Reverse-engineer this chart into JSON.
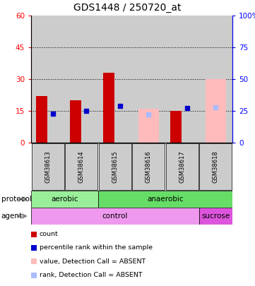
{
  "title": "GDS1448 / 250720_at",
  "samples": [
    "GSM38613",
    "GSM38614",
    "GSM38615",
    "GSM38616",
    "GSM38617",
    "GSM38618"
  ],
  "count_values": [
    22,
    20,
    33,
    null,
    15,
    null
  ],
  "rank_values": [
    23,
    25,
    29,
    null,
    27,
    null
  ],
  "absent_value_bars": [
    null,
    null,
    null,
    16,
    null,
    30
  ],
  "absent_rank_markers": [
    null,
    null,
    null,
    22,
    null,
    28
  ],
  "ytick_labels_left": [
    "0",
    "15",
    "30",
    "45",
    "60"
  ],
  "ytick_labels_right": [
    "0",
    "25",
    "50",
    "75",
    "100%"
  ],
  "protocol_labels": [
    [
      "aerobic",
      0,
      2
    ],
    [
      "anaerobic",
      2,
      6
    ]
  ],
  "agent_labels": [
    [
      "control",
      0,
      5
    ],
    [
      "sucrose",
      5,
      6
    ]
  ],
  "protocol_colors": {
    "aerobic": "#99ee99",
    "anaerobic": "#66dd66"
  },
  "agent_colors": {
    "control": "#ee99ee",
    "sucrose": "#dd55dd"
  },
  "count_color": "#cc0000",
  "rank_color": "#0000cc",
  "absent_value_color": "#ffbbbb",
  "absent_rank_color": "#aabbff",
  "bar_bg_color": "#cccccc",
  "legend_items": [
    {
      "color": "#cc0000",
      "label": "count"
    },
    {
      "color": "#0000cc",
      "label": "percentile rank within the sample"
    },
    {
      "color": "#ffbbbb",
      "label": "value, Detection Call = ABSENT"
    },
    {
      "color": "#aabbff",
      "label": "rank, Detection Call = ABSENT"
    }
  ],
  "bar_width": 0.3,
  "marker_size": 5,
  "fig_width": 3.61,
  "fig_height": 4.05,
  "fig_dpi": 100
}
